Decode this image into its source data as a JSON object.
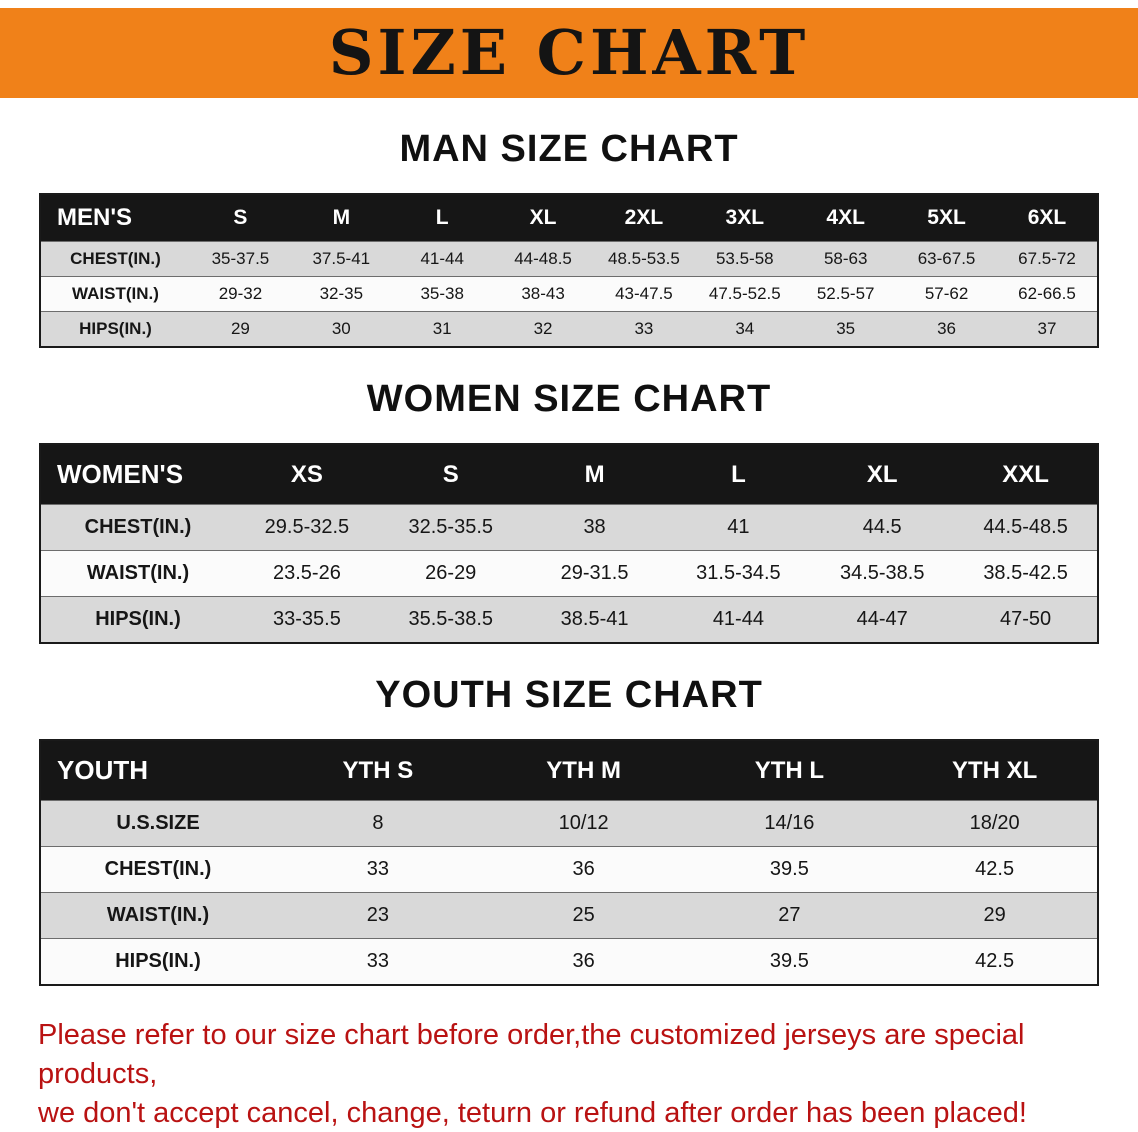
{
  "banner": {
    "title": "SIZE CHART",
    "bg": "#f08119"
  },
  "sections": [
    {
      "heading": "MAN SIZE CHART",
      "table": {
        "label": "MEN'S",
        "columns": [
          "S",
          "M",
          "L",
          "XL",
          "2XL",
          "3XL",
          "4XL",
          "5XL",
          "6XL"
        ],
        "rows": [
          {
            "label": "CHEST(IN.)",
            "values": [
              "35-37.5",
              "37.5-41",
              "41-44",
              "44-48.5",
              "48.5-53.5",
              "53.5-58",
              "58-63",
              "63-67.5",
              "67.5-72"
            ]
          },
          {
            "label": "WAIST(IN.)",
            "values": [
              "29-32",
              "32-35",
              "35-38",
              "38-43",
              "43-47.5",
              "47.5-52.5",
              "52.5-57",
              "57-62",
              "62-66.5"
            ]
          },
          {
            "label": "HIPS(IN.)",
            "values": [
              "29",
              "30",
              "31",
              "32",
              "33",
              "34",
              "35",
              "36",
              "37"
            ]
          }
        ]
      }
    },
    {
      "heading": "WOMEN SIZE CHART",
      "table": {
        "label": "WOMEN'S",
        "columns": [
          "XS",
          "S",
          "M",
          "L",
          "XL",
          "XXL"
        ],
        "rows": [
          {
            "label": "CHEST(IN.)",
            "values": [
              "29.5-32.5",
              "32.5-35.5",
              "38",
              "41",
              "44.5",
              "44.5-48.5"
            ]
          },
          {
            "label": "WAIST(IN.)",
            "values": [
              "23.5-26",
              "26-29",
              "29-31.5",
              "31.5-34.5",
              "34.5-38.5",
              "38.5-42.5"
            ]
          },
          {
            "label": "HIPS(IN.)",
            "values": [
              "33-35.5",
              "35.5-38.5",
              "38.5-41",
              "41-44",
              "44-47",
              "47-50"
            ]
          }
        ]
      }
    },
    {
      "heading": "YOUTH SIZE CHART",
      "table": {
        "label": "YOUTH",
        "columns": [
          "YTH S",
          "YTH M",
          "YTH L",
          "YTH XL"
        ],
        "rows": [
          {
            "label": "U.S.SIZE",
            "values": [
              "8",
              "10/12",
              "14/16",
              "18/20"
            ]
          },
          {
            "label": "CHEST(IN.)",
            "values": [
              "33",
              "36",
              "39.5",
              "42.5"
            ]
          },
          {
            "label": "WAIST(IN.)",
            "values": [
              "23",
              "25",
              "27",
              "29"
            ]
          },
          {
            "label": "HIPS(IN.)",
            "values": [
              "33",
              "36",
              "39.5",
              "42.5"
            ]
          }
        ]
      }
    }
  ],
  "disclaimer": {
    "line1": "Please refer to our size chart before order,the customized jerseys are special products,",
    "line2": "we don't accept cancel, change, teturn or refund after order has been placed!"
  }
}
